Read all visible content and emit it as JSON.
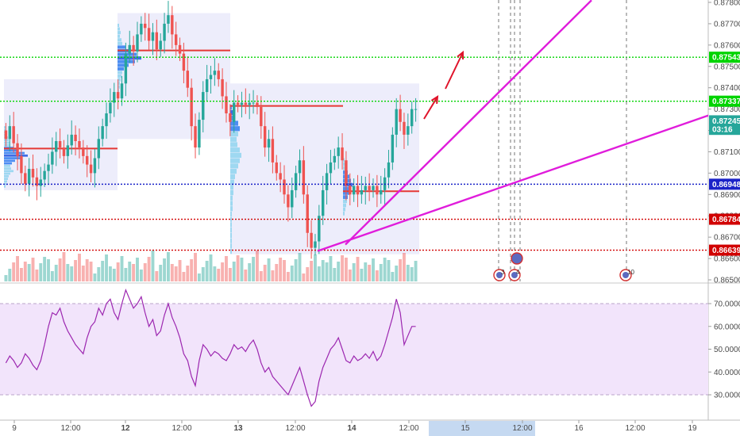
{
  "colors": {
    "up": "#26a69a",
    "down": "#ef5350",
    "volume_up": "#26a69a",
    "volume_down": "#ef5350",
    "trendline": "#e01cdb",
    "arrow": "#e0132a",
    "green_level": "#00d400",
    "blue_level": "#1a22c8",
    "red_level": "#d10000",
    "rsi_line": "#9c27b0",
    "rsi_fill": "#f2e4fb",
    "price_tag": "#26a69a",
    "poc": "#e53935"
  },
  "chart_data": [
    {
      "type": "candlestick",
      "price_axis": {
        "min": 0.865,
        "max": 0.878,
        "ticks": [
          "0.87800",
          "0.87700",
          "0.87600",
          "0.87500",
          "0.87400",
          "0.87300",
          "0.87200",
          "0.87100",
          "0.87000",
          "0.86900",
          "0.86800",
          "0.86700",
          "0.86600",
          "0.86500"
        ],
        "tick_values": [
          0.878,
          0.877,
          0.876,
          0.875,
          0.874,
          0.873,
          0.872,
          0.871,
          0.87,
          0.869,
          0.868,
          0.867,
          0.866,
          0.865
        ]
      },
      "time_axis": {
        "labels": [
          "9",
          "12:00",
          "12",
          "12:00",
          "13",
          "12:00",
          "14",
          "12:00",
          "15",
          "12:00",
          "16",
          "12:00",
          "19"
        ],
        "bold": [
          "12",
          "13",
          "14"
        ],
        "highlighted_range_labels": [
          "15",
          "12:00"
        ]
      },
      "price_labels": [
        {
          "text": "0.87543",
          "value": 0.87543,
          "color": "#00d400"
        },
        {
          "text": "0.87337",
          "value": 0.87337,
          "color": "#00d400"
        },
        {
          "text": "0.87245",
          "value": 0.87245,
          "color": "#26a69a"
        },
        {
          "text": "03:16",
          "value": 0.87205,
          "color": "#26a69a"
        },
        {
          "text": "0.86948",
          "value": 0.86948,
          "color": "#1a22c8"
        },
        {
          "text": "0.86784",
          "value": 0.86784,
          "color": "#d10000"
        },
        {
          "text": "0.86639",
          "value": 0.86639,
          "color": "#d10000"
        }
      ],
      "horizontal_levels": [
        {
          "value": 0.87543,
          "color": "green"
        },
        {
          "value": 0.87337,
          "color": "green"
        },
        {
          "value": 0.86948,
          "color": "blue"
        },
        {
          "value": 0.86784,
          "color": "red"
        },
        {
          "value": 0.86639,
          "color": "red"
        }
      ],
      "close_series": [
        0.8716,
        0.8722,
        0.8714,
        0.8708,
        0.87,
        0.8695,
        0.8702,
        0.8698,
        0.8694,
        0.8697,
        0.8701,
        0.8704,
        0.871,
        0.8715,
        0.8712,
        0.8708,
        0.8713,
        0.8718,
        0.8715,
        0.8712,
        0.8708,
        0.8704,
        0.87,
        0.8707,
        0.8716,
        0.8722,
        0.8728,
        0.8733,
        0.8738,
        0.8735,
        0.8742,
        0.8756,
        0.876,
        0.8757,
        0.8765,
        0.877,
        0.8768,
        0.8762,
        0.8766,
        0.8758,
        0.8762,
        0.877,
        0.8774,
        0.8765,
        0.876,
        0.8756,
        0.8748,
        0.874,
        0.8722,
        0.8712,
        0.8725,
        0.8738,
        0.8744,
        0.8746,
        0.8748,
        0.8744,
        0.8736,
        0.8728,
        0.8724,
        0.8733,
        0.8732,
        0.8733,
        0.8732,
        0.8733,
        0.8733,
        0.8731,
        0.8722,
        0.8712,
        0.8716,
        0.8705,
        0.87,
        0.8697,
        0.869,
        0.8684,
        0.8692,
        0.87,
        0.8706,
        0.869,
        0.8672,
        0.8665,
        0.8668,
        0.868,
        0.8692,
        0.87,
        0.8705,
        0.8708,
        0.8712,
        0.8706,
        0.8694,
        0.869,
        0.8694,
        0.869,
        0.8692,
        0.8694,
        0.8692,
        0.8694,
        0.869,
        0.8692,
        0.8698,
        0.8705,
        0.8718,
        0.873,
        0.8724,
        0.8718,
        0.8722,
        0.873,
        0.873
      ],
      "annotations": [
        {
          "type": "trendline",
          "from": {
            "x": "14 00:00",
            "y": 0.8666
          },
          "to": {
            "x": "15 12:00",
            "y": 0.8781
          }
        },
        {
          "type": "trendline",
          "from": {
            "x": "13 12:00",
            "y": 0.86635
          },
          "to": {
            "x": "19",
            "y": 0.8727
          }
        },
        {
          "type": "arrow",
          "direction": "up"
        },
        {
          "type": "arrow",
          "direction": "up"
        }
      ],
      "event_markers": [
        "3",
        "4",
        "10"
      ]
    },
    {
      "type": "line",
      "name": "RSI",
      "y_axis": {
        "min": 22,
        "max": 78,
        "ticks": [
          "70.0000",
          "60.0000",
          "50.0000",
          "40.0000",
          "30.0000"
        ],
        "tick_values": [
          70,
          60,
          50,
          40,
          30
        ]
      },
      "band": [
        30,
        70
      ],
      "values": [
        44,
        47,
        45,
        42,
        44,
        48,
        46,
        43,
        41,
        45,
        52,
        60,
        66,
        65,
        68,
        62,
        58,
        55,
        52,
        50,
        48,
        55,
        60,
        62,
        68,
        65,
        70,
        72,
        66,
        63,
        70,
        76,
        72,
        68,
        70,
        73,
        66,
        60,
        63,
        56,
        58,
        65,
        70,
        64,
        60,
        55,
        48,
        45,
        38,
        34,
        45,
        52,
        50,
        47,
        49,
        48,
        46,
        45,
        48,
        52,
        50,
        51,
        49,
        52,
        54,
        50,
        44,
        40,
        42,
        38,
        36,
        34,
        32,
        30,
        34,
        38,
        42,
        36,
        30,
        25,
        27,
        36,
        42,
        46,
        50,
        52,
        55,
        50,
        45,
        44,
        47,
        45,
        46,
        48,
        46,
        49,
        45,
        47,
        52,
        58,
        64,
        72,
        66,
        52,
        56,
        60,
        60
      ]
    }
  ]
}
